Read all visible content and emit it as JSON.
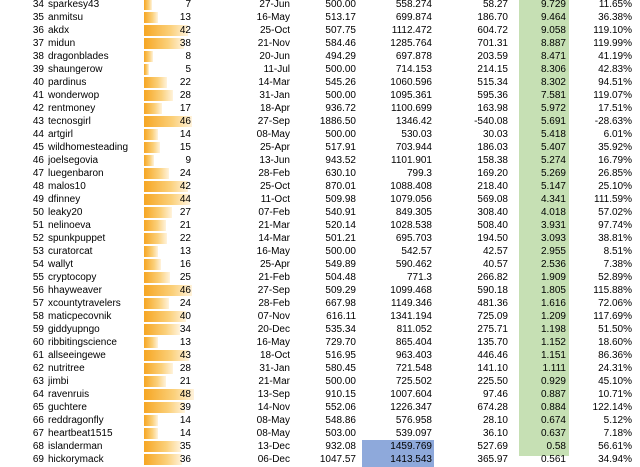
{
  "rows": [
    {
      "rank": "34",
      "user": "sparkesy43",
      "count": "7",
      "pct": 0.15,
      "date": "27-Jun",
      "v1": "500.00",
      "v2": "558.274",
      "v3": "58.27",
      "v4": "9.729",
      "v5": "11.65%"
    },
    {
      "rank": "35",
      "user": "anmitsu",
      "count": "13",
      "pct": 0.27,
      "date": "16-May",
      "v1": "513.17",
      "v2": "699.874",
      "v3": "186.70",
      "v4": "9.464",
      "v5": "36.38%"
    },
    {
      "rank": "36",
      "user": "akdx",
      "count": "42",
      "pct": 0.87,
      "date": "25-Oct",
      "v1": "507.75",
      "v2": "1112.472",
      "v3": "604.72",
      "v4": "9.058",
      "v5": "119.10%"
    },
    {
      "rank": "37",
      "user": "midun",
      "count": "38",
      "pct": 0.79,
      "date": "21-Nov",
      "v1": "584.46",
      "v2": "1285.764",
      "v3": "701.31",
      "v4": "8.887",
      "v5": "119.99%"
    },
    {
      "rank": "38",
      "user": "dragonblades",
      "count": "8",
      "pct": 0.17,
      "date": "20-Jun",
      "v1": "494.29",
      "v2": "697.878",
      "v3": "203.59",
      "v4": "8.471",
      "v5": "41.19%"
    },
    {
      "rank": "39",
      "user": "shaungerow",
      "count": "5",
      "pct": 0.1,
      "date": "11-Jul",
      "v1": "500.00",
      "v2": "714.153",
      "v3": "214.15",
      "v4": "8.306",
      "v5": "42.83%"
    },
    {
      "rank": "40",
      "user": "pardinus",
      "count": "22",
      "pct": 0.46,
      "date": "14-Mar",
      "v1": "545.26",
      "v2": "1060.596",
      "v3": "515.34",
      "v4": "8.302",
      "v5": "94.51%"
    },
    {
      "rank": "41",
      "user": "wonderwop",
      "count": "28",
      "pct": 0.58,
      "date": "31-Jan",
      "v1": "500.00",
      "v2": "1095.361",
      "v3": "595.36",
      "v4": "7.581",
      "v5": "119.07%"
    },
    {
      "rank": "42",
      "user": "rentmoney",
      "count": "17",
      "pct": 0.35,
      "date": "18-Apr",
      "v1": "936.72",
      "v2": "1100.699",
      "v3": "163.98",
      "v4": "5.972",
      "v5": "17.51%"
    },
    {
      "rank": "43",
      "user": "tecnosgirl",
      "count": "46",
      "pct": 0.96,
      "date": "27-Sep",
      "v1": "1886.50",
      "v2": "1346.42",
      "v3": "-540.08",
      "v4": "5.691",
      "v5": "-28.63%"
    },
    {
      "rank": "44",
      "user": "artgirl",
      "count": "14",
      "pct": 0.29,
      "date": "08-May",
      "v1": "500.00",
      "v2": "530.03",
      "v3": "30.03",
      "v4": "5.418",
      "v5": "6.01%"
    },
    {
      "rank": "45",
      "user": "wildhomesteading",
      "count": "15",
      "pct": 0.31,
      "date": "25-Apr",
      "v1": "517.91",
      "v2": "703.944",
      "v3": "186.03",
      "v4": "5.407",
      "v5": "35.92%"
    },
    {
      "rank": "46",
      "user": "joelsegovia",
      "count": "9",
      "pct": 0.19,
      "date": "13-Jun",
      "v1": "943.52",
      "v2": "1101.901",
      "v3": "158.38",
      "v4": "5.274",
      "v5": "16.79%"
    },
    {
      "rank": "47",
      "user": "luegenbaron",
      "count": "24",
      "pct": 0.5,
      "date": "28-Feb",
      "v1": "630.10",
      "v2": "799.3",
      "v3": "169.20",
      "v4": "5.269",
      "v5": "26.85%"
    },
    {
      "rank": "48",
      "user": "malos10",
      "count": "42",
      "pct": 0.87,
      "date": "25-Oct",
      "v1": "870.01",
      "v2": "1088.408",
      "v3": "218.40",
      "v4": "5.147",
      "v5": "25.10%"
    },
    {
      "rank": "49",
      "user": "dfinney",
      "count": "44",
      "pct": 0.92,
      "date": "11-Oct",
      "v1": "509.98",
      "v2": "1079.056",
      "v3": "569.08",
      "v4": "4.341",
      "v5": "111.59%"
    },
    {
      "rank": "50",
      "user": "leaky20",
      "count": "27",
      "pct": 0.56,
      "date": "07-Feb",
      "v1": "540.91",
      "v2": "849.305",
      "v3": "308.40",
      "v4": "4.018",
      "v5": "57.02%"
    },
    {
      "rank": "51",
      "user": "nelinoeva",
      "count": "21",
      "pct": 0.44,
      "date": "21-Mar",
      "v1": "520.14",
      "v2": "1028.538",
      "v3": "508.40",
      "v4": "3.931",
      "v5": "97.74%"
    },
    {
      "rank": "52",
      "user": "spunkpuppet",
      "count": "22",
      "pct": 0.46,
      "date": "14-Mar",
      "v1": "501.21",
      "v2": "695.703",
      "v3": "194.50",
      "v4": "3.093",
      "v5": "38.81%"
    },
    {
      "rank": "53",
      "user": "curatorcat",
      "count": "13",
      "pct": 0.27,
      "date": "16-May",
      "v1": "500.00",
      "v2": "542.57",
      "v3": "42.57",
      "v4": "2.955",
      "v5": "8.51%"
    },
    {
      "rank": "54",
      "user": "wallyt",
      "count": "16",
      "pct": 0.33,
      "date": "25-Apr",
      "v1": "549.89",
      "v2": "590.462",
      "v3": "40.57",
      "v4": "2.536",
      "v5": "7.38%"
    },
    {
      "rank": "55",
      "user": "cryptocopy",
      "count": "25",
      "pct": 0.52,
      "date": "21-Feb",
      "v1": "504.48",
      "v2": "771.3",
      "v3": "266.82",
      "v4": "1.909",
      "v5": "52.89%"
    },
    {
      "rank": "56",
      "user": "hhayweaver",
      "count": "46",
      "pct": 0.96,
      "date": "27-Sep",
      "v1": "509.29",
      "v2": "1099.468",
      "v3": "590.18",
      "v4": "1.805",
      "v5": "115.88%"
    },
    {
      "rank": "57",
      "user": "xcountytravelers",
      "count": "24",
      "pct": 0.5,
      "date": "28-Feb",
      "v1": "667.98",
      "v2": "1149.346",
      "v3": "481.36",
      "v4": "1.616",
      "v5": "72.06%"
    },
    {
      "rank": "58",
      "user": "maticpecovnik",
      "count": "40",
      "pct": 0.83,
      "date": "07-Nov",
      "v1": "616.11",
      "v2": "1341.194",
      "v3": "725.09",
      "v4": "1.209",
      "v5": "117.69%"
    },
    {
      "rank": "59",
      "user": "giddyupngo",
      "count": "34",
      "pct": 0.71,
      "date": "20-Dec",
      "v1": "535.34",
      "v2": "811.052",
      "v3": "275.71",
      "v4": "1.198",
      "v5": "51.50%"
    },
    {
      "rank": "60",
      "user": "ribbitingscience",
      "count": "13",
      "pct": 0.27,
      "date": "16-May",
      "v1": "729.70",
      "v2": "865.404",
      "v3": "135.70",
      "v4": "1.152",
      "v5": "18.60%"
    },
    {
      "rank": "61",
      "user": "allseeingewe",
      "count": "43",
      "pct": 0.9,
      "date": "18-Oct",
      "v1": "516.95",
      "v2": "963.403",
      "v3": "446.46",
      "v4": "1.151",
      "v5": "86.36%"
    },
    {
      "rank": "62",
      "user": "nutritree",
      "count": "28",
      "pct": 0.58,
      "date": "31-Jan",
      "v1": "580.45",
      "v2": "721.548",
      "v3": "141.10",
      "v4": "1.111",
      "v5": "24.31%"
    },
    {
      "rank": "63",
      "user": "jimbi",
      "count": "21",
      "pct": 0.44,
      "date": "21-Mar",
      "v1": "500.00",
      "v2": "725.502",
      "v3": "225.50",
      "v4": "0.929",
      "v5": "45.10%"
    },
    {
      "rank": "64",
      "user": "ravenruis",
      "count": "48",
      "pct": 1.0,
      "date": "13-Sep",
      "v1": "910.15",
      "v2": "1007.604",
      "v3": "97.46",
      "v4": "0.887",
      "v5": "10.71%"
    },
    {
      "rank": "65",
      "user": "guchtere",
      "count": "39",
      "pct": 0.81,
      "date": "14-Nov",
      "v1": "552.06",
      "v2": "1226.347",
      "v3": "674.28",
      "v4": "0.884",
      "v5": "122.14%"
    },
    {
      "rank": "66",
      "user": "reddragonfly",
      "count": "14",
      "pct": 0.29,
      "date": "08-May",
      "v1": "548.86",
      "v2": "576.958",
      "v3": "28.10",
      "v4": "0.674",
      "v5": "5.12%"
    },
    {
      "rank": "67",
      "user": "heartbeat1515",
      "count": "14",
      "pct": 0.29,
      "date": "08-May",
      "v1": "503.00",
      "v2": "539.097",
      "v3": "36.10",
      "v4": "0.637",
      "v5": "7.18%"
    },
    {
      "rank": "68",
      "user": "islanderman",
      "count": "35",
      "pct": 0.73,
      "date": "13-Dec",
      "v1": "932.08",
      "v2": "1459.769",
      "v3": "527.69",
      "v4": "0.58",
      "v5": "56.61%",
      "highlight": true
    },
    {
      "rank": "69",
      "user": "hickorymack",
      "count": "36",
      "pct": 0.75,
      "date": "06-Dec",
      "v1": "1047.57",
      "v2": "1413.543",
      "v3": "365.97",
      "v4": "0.561",
      "v5": "34.94%",
      "highlight": true
    }
  ]
}
